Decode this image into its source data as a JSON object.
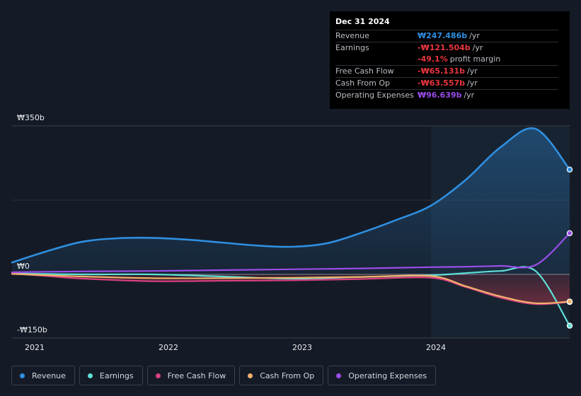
{
  "tooltip": {
    "date": "Dec 31 2024",
    "rows": [
      {
        "label": "Revenue",
        "value": "₩247.486b",
        "unit": "/yr",
        "color": "#2f8fe0"
      },
      {
        "label": "Earnings",
        "value": "-₩121.504b",
        "unit": "/yr",
        "color": "#e8363f"
      },
      {
        "label": "",
        "value": "-49.1%",
        "unit": "profit margin",
        "color": "#e8363f"
      },
      {
        "label": "Free Cash Flow",
        "value": "-₩65.131b",
        "unit": "/yr",
        "color": "#e8363f"
      },
      {
        "label": "Cash From Op",
        "value": "-₩63.557b",
        "unit": "/yr",
        "color": "#e8363f"
      },
      {
        "label": "Operating Expenses",
        "value": "₩96.639b",
        "unit": "/yr",
        "color": "#9b4dea"
      }
    ]
  },
  "legend": [
    {
      "label": "Revenue",
      "color": "#2f8fe0"
    },
    {
      "label": "Earnings",
      "color": "#5fe0d8"
    },
    {
      "label": "Free Cash Flow",
      "color": "#d6417f"
    },
    {
      "label": "Cash From Op",
      "color": "#f0b26c"
    },
    {
      "label": "Operating Expenses",
      "color": "#9b4dea"
    }
  ],
  "chart_data": {
    "type": "line",
    "title": "",
    "xlabel": "",
    "ylabel": "",
    "y_tick_labels": [
      "₩350b",
      "₩0",
      "-₩150b"
    ],
    "x_tick_labels": [
      "2021",
      "2022",
      "2023",
      "2024"
    ],
    "xlim": [
      2020.995,
      2024.995
    ],
    "ylim": [
      -150,
      350
    ],
    "grid": true,
    "forecast_start": 2024.0,
    "series": [
      {
        "name": "Revenue",
        "color": "#2f8fe0",
        "x": [
          2020.995,
          2021.25,
          2021.5,
          2021.75,
          2022.0,
          2022.25,
          2022.5,
          2022.75,
          2023.0,
          2023.25,
          2023.5,
          2023.75,
          2024.0,
          2024.25,
          2024.5,
          2024.75,
          2024.995
        ],
        "y": [
          28,
          55,
          77,
          85,
          86,
          82,
          75,
          68,
          65,
          73,
          98,
          128,
          162,
          223,
          300,
          343,
          247
        ]
      },
      {
        "name": "Earnings",
        "color": "#5fe0d8",
        "x": [
          2020.995,
          2021.5,
          2022.0,
          2022.5,
          2023.0,
          2023.5,
          2024.0,
          2024.25,
          2024.5,
          2024.75,
          2024.995
        ],
        "y": [
          2,
          0,
          0,
          -5,
          -10,
          -6,
          -2,
          3,
          8,
          8,
          -121
        ]
      },
      {
        "name": "Free Cash Flow",
        "color": "#d6417f",
        "x": [
          2020.995,
          2021.25,
          2021.5,
          2022.0,
          2022.5,
          2023.0,
          2023.5,
          2024.0,
          2024.25,
          2024.5,
          2024.75,
          2024.995
        ],
        "y": [
          2,
          -4,
          -10,
          -16,
          -15,
          -14,
          -11,
          -8,
          -30,
          -55,
          -70,
          -65
        ]
      },
      {
        "name": "Cash From Op",
        "color": "#f0b26c",
        "x": [
          2020.995,
          2021.25,
          2021.5,
          2022.0,
          2022.5,
          2023.0,
          2023.5,
          2024.0,
          2024.25,
          2024.5,
          2024.75,
          2024.995
        ],
        "y": [
          1,
          -2,
          -5,
          -9,
          -9,
          -8,
          -6,
          -4,
          -28,
          -52,
          -68,
          -64
        ]
      },
      {
        "name": "Operating Expenses",
        "color": "#9b4dea",
        "x": [
          2020.995,
          2021.5,
          2022.0,
          2022.5,
          2023.0,
          2023.5,
          2024.0,
          2024.25,
          2024.5,
          2024.75,
          2024.995
        ],
        "y": [
          5,
          7,
          8,
          10,
          12,
          14,
          17,
          18,
          20,
          22,
          97
        ]
      }
    ]
  }
}
